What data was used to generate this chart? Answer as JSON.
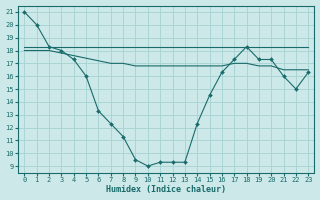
{
  "xlabel": "Humidex (Indice chaleur)",
  "ylabel": "",
  "xlim": [
    -0.5,
    23.5
  ],
  "ylim": [
    8.5,
    21.5
  ],
  "xticks": [
    0,
    1,
    2,
    3,
    4,
    5,
    6,
    7,
    8,
    9,
    10,
    11,
    12,
    13,
    14,
    15,
    16,
    17,
    18,
    19,
    20,
    21,
    22,
    23
  ],
  "yticks": [
    9,
    10,
    11,
    12,
    13,
    14,
    15,
    16,
    17,
    18,
    19,
    20,
    21
  ],
  "bg_color": "#cce8e8",
  "grid_color": "#aad4d4",
  "line_color": "#1a6b6b",
  "line1_x": [
    0,
    1,
    2,
    3,
    4,
    5,
    6,
    7,
    8,
    9,
    10,
    11,
    12,
    13,
    14,
    15,
    16,
    17,
    18,
    19,
    20,
    21,
    22,
    23
  ],
  "line1_y": [
    21.0,
    20.0,
    18.3,
    18.0,
    17.3,
    16.0,
    13.3,
    12.3,
    11.3,
    9.5,
    9.0,
    9.3,
    9.3,
    9.3,
    12.3,
    14.5,
    16.3,
    17.3,
    18.3,
    17.3,
    17.3,
    16.0,
    15.0,
    16.3
  ],
  "line2_x": [
    0,
    1,
    2,
    3,
    4,
    5,
    6,
    7,
    8,
    9,
    10,
    11,
    12,
    13,
    14,
    15,
    16,
    17,
    18,
    19,
    20,
    21,
    22,
    23
  ],
  "line2_y": [
    18.3,
    18.3,
    18.3,
    18.3,
    18.3,
    18.3,
    18.3,
    18.3,
    18.3,
    18.3,
    18.3,
    18.3,
    18.3,
    18.3,
    18.3,
    18.3,
    18.3,
    18.3,
    18.3,
    18.3,
    18.3,
    18.3,
    18.3,
    18.3
  ],
  "line3_x": [
    0,
    1,
    2,
    3,
    4,
    5,
    6,
    7,
    8,
    9,
    10,
    11,
    12,
    13,
    14,
    15,
    16,
    17,
    18,
    19,
    20,
    21,
    22,
    23
  ],
  "line3_y": [
    18.0,
    18.0,
    18.0,
    17.8,
    17.6,
    17.4,
    17.2,
    17.0,
    17.0,
    16.8,
    16.8,
    16.8,
    16.8,
    16.8,
    16.8,
    16.8,
    16.8,
    17.0,
    17.0,
    16.8,
    16.8,
    16.5,
    16.5,
    16.5
  ]
}
